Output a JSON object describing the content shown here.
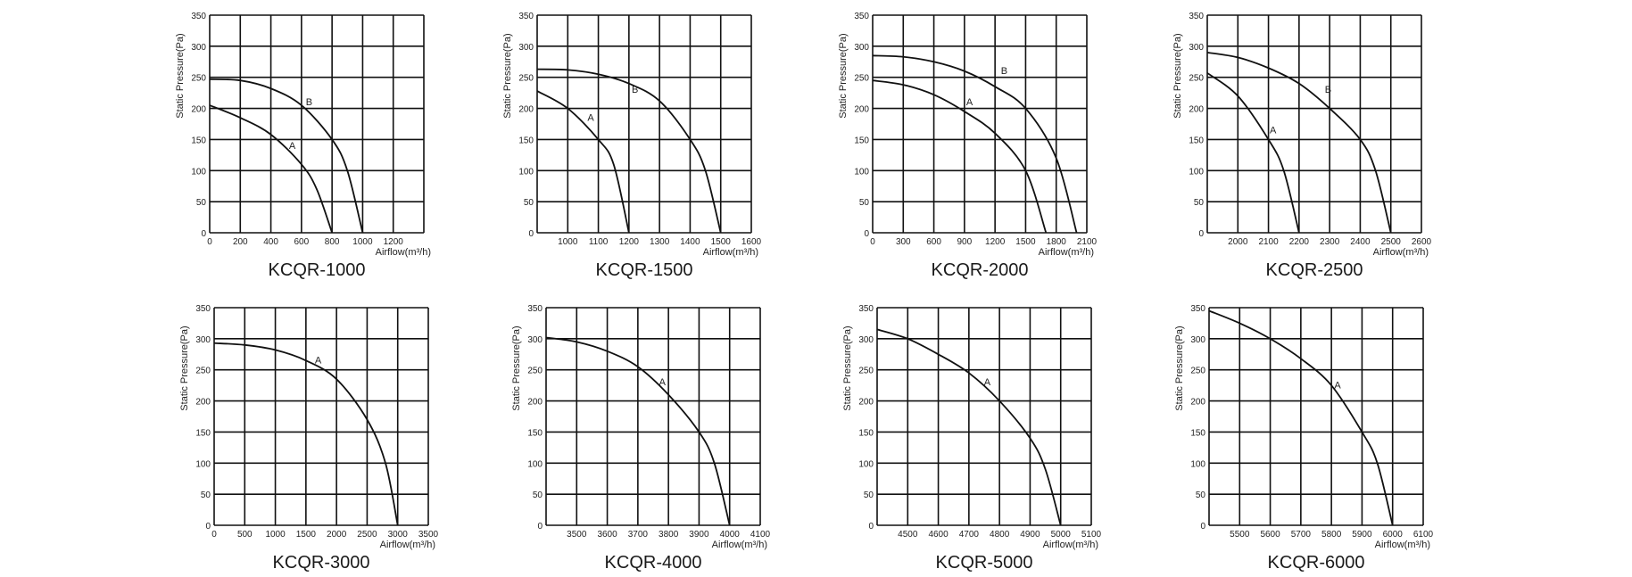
{
  "chart_data": [
    {
      "type": "line",
      "title": "KCQR-1000",
      "xlabel": "Airflow(m³/h)",
      "ylabel": "Static Pressure(Pa)",
      "xlim": [
        0,
        1400
      ],
      "ylim": [
        0,
        350
      ],
      "x_ticks": [
        0,
        200,
        400,
        600,
        800,
        1000,
        1200
      ],
      "y_ticks": [
        0,
        50,
        100,
        150,
        200,
        250,
        300,
        350
      ],
      "grid": true,
      "series": [
        {
          "name": "A",
          "points": [
            [
              0,
              205
            ],
            [
              200,
              185
            ],
            [
              400,
              158
            ],
            [
              600,
              110
            ],
            [
              700,
              70
            ],
            [
              800,
              0
            ]
          ]
        },
        {
          "name": "B",
          "points": [
            [
              0,
              247
            ],
            [
              200,
              245
            ],
            [
              400,
              232
            ],
            [
              600,
              205
            ],
            [
              800,
              150
            ],
            [
              900,
              100
            ],
            [
              1000,
              0
            ]
          ]
        }
      ],
      "annotations": [
        {
          "text": "A",
          "x": 540,
          "y": 135
        },
        {
          "text": "B",
          "x": 650,
          "y": 205
        }
      ]
    },
    {
      "type": "line",
      "title": "KCQR-1500",
      "xlabel": "Airflow(m³/h)",
      "ylabel": "Static Pressure(Pa)",
      "xlim": [
        900,
        1600
      ],
      "ylim": [
        0,
        350
      ],
      "x_ticks": [
        1000,
        1100,
        1200,
        1300,
        1400,
        1500,
        1600
      ],
      "y_ticks": [
        0,
        50,
        100,
        150,
        200,
        250,
        300,
        350
      ],
      "grid": true,
      "series": [
        {
          "name": "A",
          "points": [
            [
              900,
              228
            ],
            [
              1000,
              200
            ],
            [
              1100,
              150
            ],
            [
              1150,
              110
            ],
            [
              1200,
              0
            ]
          ]
        },
        {
          "name": "B",
          "points": [
            [
              900,
              263
            ],
            [
              1000,
              262
            ],
            [
              1100,
              255
            ],
            [
              1200,
              240
            ],
            [
              1300,
              212
            ],
            [
              1400,
              150
            ],
            [
              1450,
              100
            ],
            [
              1500,
              0
            ]
          ]
        }
      ],
      "annotations": [
        {
          "text": "A",
          "x": 1075,
          "y": 180
        },
        {
          "text": "B",
          "x": 1220,
          "y": 225
        }
      ]
    },
    {
      "type": "line",
      "title": "KCQR-2000",
      "xlabel": "Airflow(m³/h)",
      "ylabel": "Static Pressure(Pa)",
      "xlim": [
        0,
        2100
      ],
      "ylim": [
        0,
        350
      ],
      "x_ticks": [
        0,
        300,
        600,
        900,
        1200,
        1500,
        1800,
        2100
      ],
      "y_ticks": [
        0,
        50,
        100,
        150,
        200,
        250,
        300,
        350
      ],
      "grid": true,
      "series": [
        {
          "name": "A",
          "points": [
            [
              0,
              245
            ],
            [
              300,
              238
            ],
            [
              600,
              222
            ],
            [
              900,
              195
            ],
            [
              1200,
              160
            ],
            [
              1500,
              100
            ],
            [
              1700,
              0
            ]
          ]
        },
        {
          "name": "B",
          "points": [
            [
              0,
              285
            ],
            [
              300,
              283
            ],
            [
              600,
              275
            ],
            [
              900,
              260
            ],
            [
              1200,
              235
            ],
            [
              1500,
              200
            ],
            [
              1800,
              120
            ],
            [
              2000,
              0
            ]
          ]
        }
      ],
      "annotations": [
        {
          "text": "A",
          "x": 950,
          "y": 205
        },
        {
          "text": "B",
          "x": 1290,
          "y": 255
        }
      ]
    },
    {
      "type": "line",
      "title": "KCQR-2500",
      "xlabel": "Airflow(m³/h)",
      "ylabel": "Static Pressure(Pa)",
      "xlim": [
        1900,
        2600
      ],
      "ylim": [
        0,
        350
      ],
      "x_ticks": [
        2000,
        2100,
        2200,
        2300,
        2400,
        2500,
        2600
      ],
      "y_ticks": [
        0,
        50,
        100,
        150,
        200,
        250,
        300,
        350
      ],
      "grid": true,
      "series": [
        {
          "name": "A",
          "points": [
            [
              1900,
              257
            ],
            [
              2000,
              220
            ],
            [
              2100,
              150
            ],
            [
              2150,
              100
            ],
            [
              2200,
              0
            ]
          ]
        },
        {
          "name": "B",
          "points": [
            [
              1900,
              290
            ],
            [
              2000,
              282
            ],
            [
              2100,
              265
            ],
            [
              2200,
              240
            ],
            [
              2300,
              200
            ],
            [
              2400,
              150
            ],
            [
              2450,
              100
            ],
            [
              2500,
              0
            ]
          ]
        }
      ],
      "annotations": [
        {
          "text": "A",
          "x": 2115,
          "y": 160
        },
        {
          "text": "B",
          "x": 2295,
          "y": 225
        }
      ]
    },
    {
      "type": "line",
      "title": "KCQR-3000",
      "xlabel": "Airflow(m³/h)",
      "ylabel": "Static Pressure(Pa)",
      "xlim": [
        0,
        3500
      ],
      "ylim": [
        0,
        350
      ],
      "x_ticks": [
        0,
        500,
        1000,
        1500,
        2000,
        2500,
        3000,
        3500
      ],
      "y_ticks": [
        0,
        50,
        100,
        150,
        200,
        250,
        300,
        350
      ],
      "grid": true,
      "series": [
        {
          "name": "A",
          "points": [
            [
              0,
              293
            ],
            [
              500,
              290
            ],
            [
              1000,
              282
            ],
            [
              1500,
              265
            ],
            [
              2000,
              235
            ],
            [
              2500,
              170
            ],
            [
              2800,
              100
            ],
            [
              3000,
              0
            ]
          ]
        }
      ],
      "annotations": [
        {
          "text": "A",
          "x": 1700,
          "y": 260
        }
      ]
    },
    {
      "type": "line",
      "title": "KCQR-4000",
      "xlabel": "Airflow(m³/h)",
      "ylabel": "Static Pressure(Pa)",
      "xlim": [
        3400,
        4100
      ],
      "ylim": [
        0,
        350
      ],
      "x_ticks": [
        3500,
        3600,
        3700,
        3800,
        3900,
        4000,
        4100
      ],
      "y_ticks": [
        0,
        50,
        100,
        150,
        200,
        250,
        300,
        350
      ],
      "grid": true,
      "series": [
        {
          "name": "A",
          "points": [
            [
              3400,
              302
            ],
            [
              3500,
              295
            ],
            [
              3600,
              280
            ],
            [
              3700,
              255
            ],
            [
              3800,
              210
            ],
            [
              3900,
              150
            ],
            [
              3950,
              100
            ],
            [
              4000,
              0
            ]
          ]
        }
      ],
      "annotations": [
        {
          "text": "A",
          "x": 3780,
          "y": 225
        }
      ]
    },
    {
      "type": "line",
      "title": "KCQR-5000",
      "xlabel": "Airflow(m³/h)",
      "ylabel": "Static Pressure(Pa)",
      "xlim": [
        4400,
        5100
      ],
      "ylim": [
        0,
        350
      ],
      "x_ticks": [
        4500,
        4600,
        4700,
        4800,
        4900,
        5000,
        5100
      ],
      "y_ticks": [
        0,
        50,
        100,
        150,
        200,
        250,
        300,
        350
      ],
      "grid": true,
      "series": [
        {
          "name": "A",
          "points": [
            [
              4400,
              315
            ],
            [
              4500,
              300
            ],
            [
              4600,
              275
            ],
            [
              4700,
              245
            ],
            [
              4800,
              200
            ],
            [
              4900,
              140
            ],
            [
              4950,
              90
            ],
            [
              5000,
              0
            ]
          ]
        }
      ],
      "annotations": [
        {
          "text": "A",
          "x": 4760,
          "y": 225
        }
      ]
    },
    {
      "type": "line",
      "title": "KCQR-6000",
      "xlabel": "Airflow(m³/h)",
      "ylabel": "Static Pressure(Pa)",
      "xlim": [
        5400,
        6100
      ],
      "ylim": [
        0,
        350
      ],
      "x_ticks": [
        5500,
        5600,
        5700,
        5800,
        5900,
        6000,
        6100
      ],
      "y_ticks": [
        0,
        50,
        100,
        150,
        200,
        250,
        300,
        350
      ],
      "grid": true,
      "series": [
        {
          "name": "A",
          "points": [
            [
              5400,
              345
            ],
            [
              5500,
              325
            ],
            [
              5600,
              300
            ],
            [
              5700,
              268
            ],
            [
              5800,
              225
            ],
            [
              5900,
              150
            ],
            [
              5950,
              100
            ],
            [
              6000,
              0
            ]
          ]
        }
      ],
      "annotations": [
        {
          "text": "A",
          "x": 5820,
          "y": 220
        }
      ]
    }
  ]
}
